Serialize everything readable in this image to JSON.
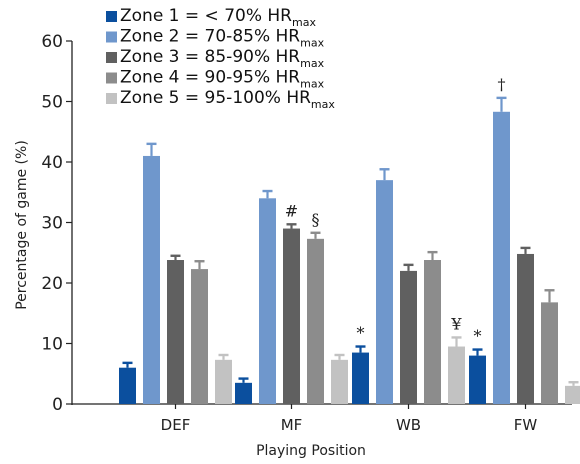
{
  "chart_data": {
    "type": "bar",
    "ylabel": "Percentage of game (%)",
    "xlabel": "Playing Position",
    "ylim": [
      0,
      60
    ],
    "yticks": [
      0,
      10,
      20,
      30,
      40,
      50,
      60
    ],
    "categories": [
      "DEF",
      "MF",
      "WB",
      "FW"
    ],
    "legend_position": "top-left",
    "series": [
      {
        "name": "Zone 1 = < 70% HR",
        "name_sub": "max",
        "color": "#0b4f9e",
        "values": [
          6.0,
          3.5,
          8.5,
          8.0
        ],
        "errors": [
          0.8,
          0.7,
          1.0,
          1.0
        ]
      },
      {
        "name": "Zone 2 = 70-85% HR",
        "name_sub": "max",
        "color": "#6f97cc",
        "values": [
          41.0,
          34.0,
          37.0,
          48.3
        ],
        "errors": [
          2.0,
          1.2,
          1.8,
          2.3
        ]
      },
      {
        "name": "Zone 3 = 85-90% HR",
        "name_sub": "max",
        "color": "#606060",
        "values": [
          23.8,
          29.0,
          22.0,
          24.8
        ],
        "errors": [
          0.7,
          0.7,
          1.0,
          1.0
        ]
      },
      {
        "name": "Zone 4 = 90-95% HR",
        "name_sub": "max",
        "color": "#8c8c8c",
        "values": [
          22.3,
          27.3,
          23.8,
          16.8
        ],
        "errors": [
          1.3,
          1.0,
          1.3,
          2.0
        ]
      },
      {
        "name": "Zone 5 = 95-100% HR",
        "name_sub": "max",
        "color": "#c2c2c2",
        "values": [
          7.3,
          7.3,
          9.5,
          3.0
        ],
        "errors": [
          0.8,
          0.8,
          1.5,
          0.6
        ]
      }
    ],
    "annotations": [
      {
        "text": "#",
        "category": "MF",
        "series": 2
      },
      {
        "text": "§",
        "category": "MF",
        "series": 3
      },
      {
        "text": "*",
        "category": "WB",
        "series": 0
      },
      {
        "text": "¥",
        "category": "WB",
        "series": 4
      },
      {
        "text": "*",
        "category": "FW",
        "series": 0
      },
      {
        "text": "†",
        "category": "FW",
        "series": 1
      }
    ]
  }
}
